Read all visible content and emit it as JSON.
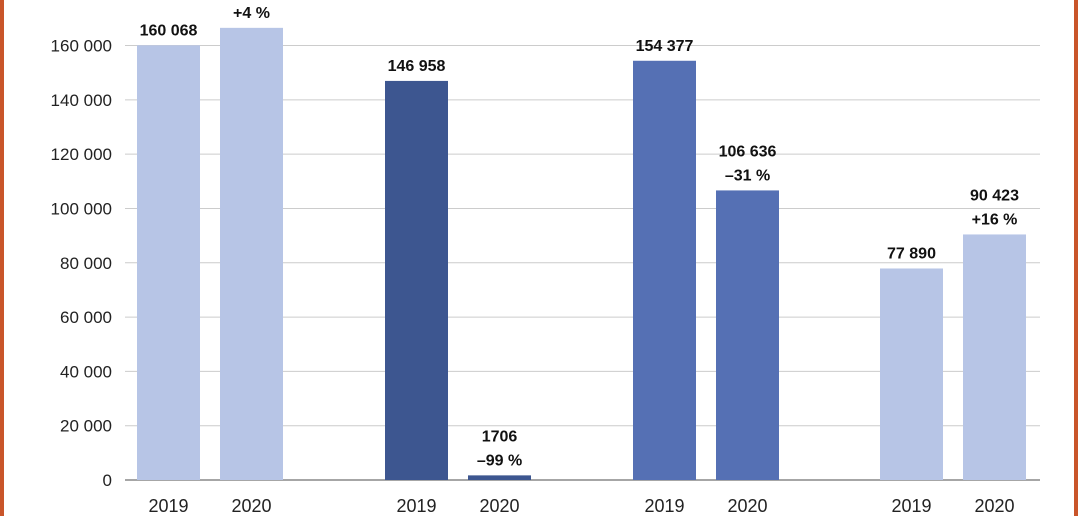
{
  "colors": {
    "frame": "#c9552a",
    "grid": "#cccccc",
    "axis": "#888888"
  },
  "chart_data": {
    "type": "bar",
    "title": "",
    "xlabel": "",
    "ylabel": "",
    "ylim": [
      0,
      170000
    ],
    "yticks": [
      0,
      20000,
      40000,
      60000,
      80000,
      100000,
      120000,
      140000,
      160000
    ],
    "ytick_labels": [
      "0",
      "20 000",
      "40 000",
      "60 000",
      "80 000",
      "100 000",
      "120 000",
      "140 000",
      "160 000"
    ],
    "grid": true,
    "groups": [
      {
        "bars": [
          {
            "category": "2019",
            "value": 160068,
            "label": "160 068",
            "change": "",
            "color": "#b7c5e6"
          },
          {
            "category": "2020",
            "value": 166500,
            "label": "",
            "change": "+4 %",
            "color": "#b7c5e6"
          }
        ]
      },
      {
        "bars": [
          {
            "category": "2019",
            "value": 146958,
            "label": "146 958",
            "change": "",
            "color": "#3d5690"
          },
          {
            "category": "2020",
            "value": 1706,
            "label": "1706",
            "change": "–99 %",
            "color": "#3d5690"
          }
        ]
      },
      {
        "bars": [
          {
            "category": "2019",
            "value": 154377,
            "label": "154 377",
            "change": "",
            "color": "#5570b4"
          },
          {
            "category": "2020",
            "value": 106636,
            "label": "106 636",
            "change": "–31 %",
            "color": "#5570b4"
          }
        ]
      },
      {
        "bars": [
          {
            "category": "2019",
            "value": 77890,
            "label": "77 890",
            "change": "",
            "color": "#b7c5e6"
          },
          {
            "category": "2020",
            "value": 90423,
            "label": "90 423",
            "change": "+16 %",
            "color": "#b7c5e6"
          }
        ]
      }
    ]
  }
}
